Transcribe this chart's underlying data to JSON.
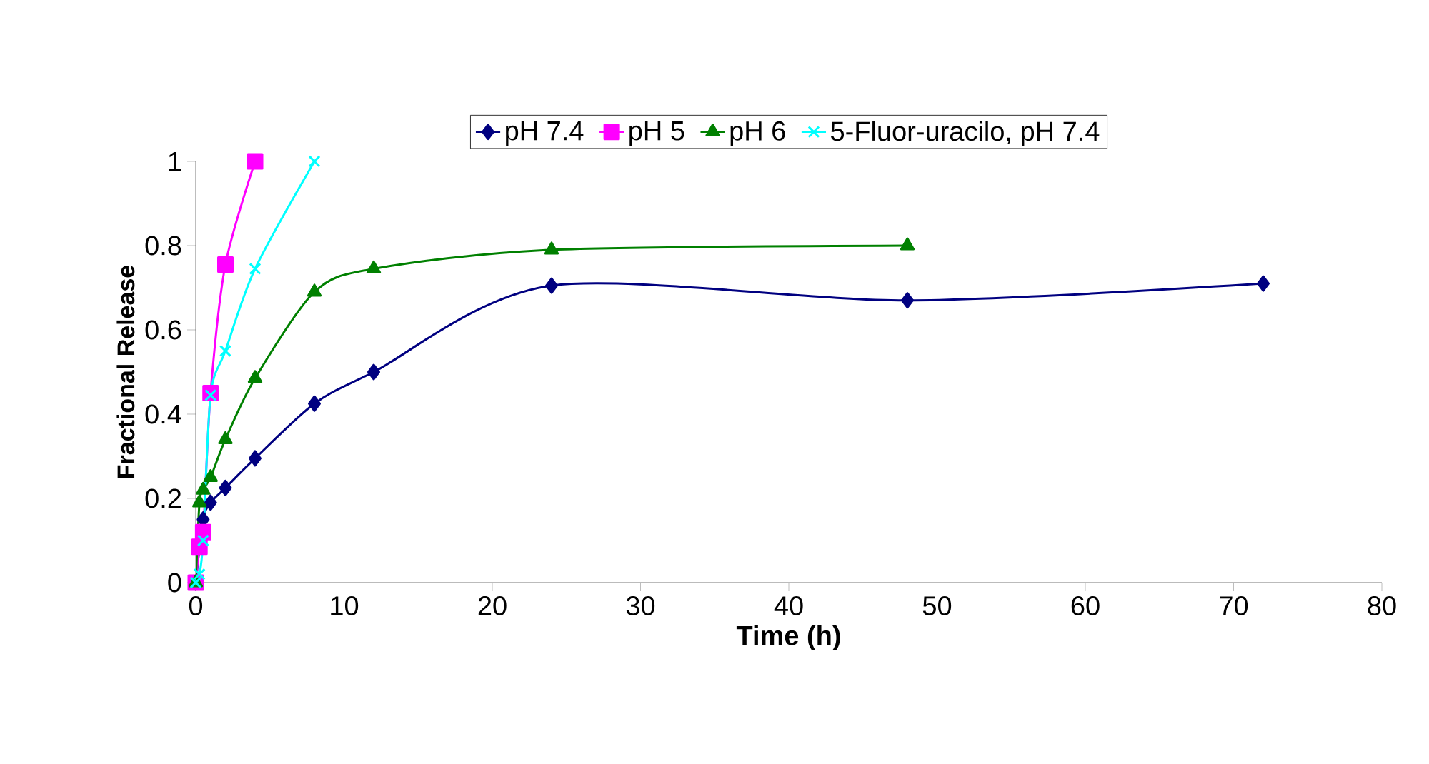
{
  "chart_data": {
    "type": "line",
    "xlabel": "Time (h)",
    "ylabel": "Fractional Release",
    "xlim": [
      0,
      80
    ],
    "xticks": [
      0,
      10,
      20,
      30,
      40,
      50,
      60,
      70,
      80
    ],
    "ylim": [
      0,
      1
    ],
    "yticks": [
      0,
      0.2,
      0.4,
      0.6,
      0.8,
      1
    ],
    "legend": "top",
    "grid": false,
    "series": [
      {
        "name": "pH 7.4",
        "color": "#000080",
        "marker": "diamond",
        "x": [
          0,
          0.25,
          0.5,
          1,
          2,
          4,
          8,
          12,
          24,
          48,
          72
        ],
        "values": [
          0,
          null,
          0.15,
          0.19,
          0.225,
          0.295,
          0.425,
          0.5,
          0.705,
          0.67,
          0.71
        ]
      },
      {
        "name": "pH 5",
        "color": "#ff00ff",
        "marker": "square",
        "x": [
          0,
          0.25,
          0.5,
          1,
          2,
          4
        ],
        "values": [
          0,
          0.085,
          0.12,
          0.45,
          0.755,
          1.0
        ]
      },
      {
        "name": "pH 6",
        "color": "#008000",
        "marker": "triangle",
        "x": [
          0,
          0.25,
          0.5,
          1,
          2,
          4,
          8,
          12,
          24,
          48
        ],
        "values": [
          0,
          0.19,
          0.22,
          0.25,
          0.34,
          0.485,
          0.69,
          0.745,
          0.79,
          0.8
        ]
      },
      {
        "name": "5-Fluor-uracilo, pH 7.4",
        "color": "#00ffff",
        "marker": "cross",
        "x": [
          0,
          0.25,
          0.5,
          1,
          2,
          4,
          8
        ],
        "values": [
          0,
          0.02,
          0.1,
          0.445,
          0.55,
          0.745,
          1.0
        ]
      }
    ]
  }
}
